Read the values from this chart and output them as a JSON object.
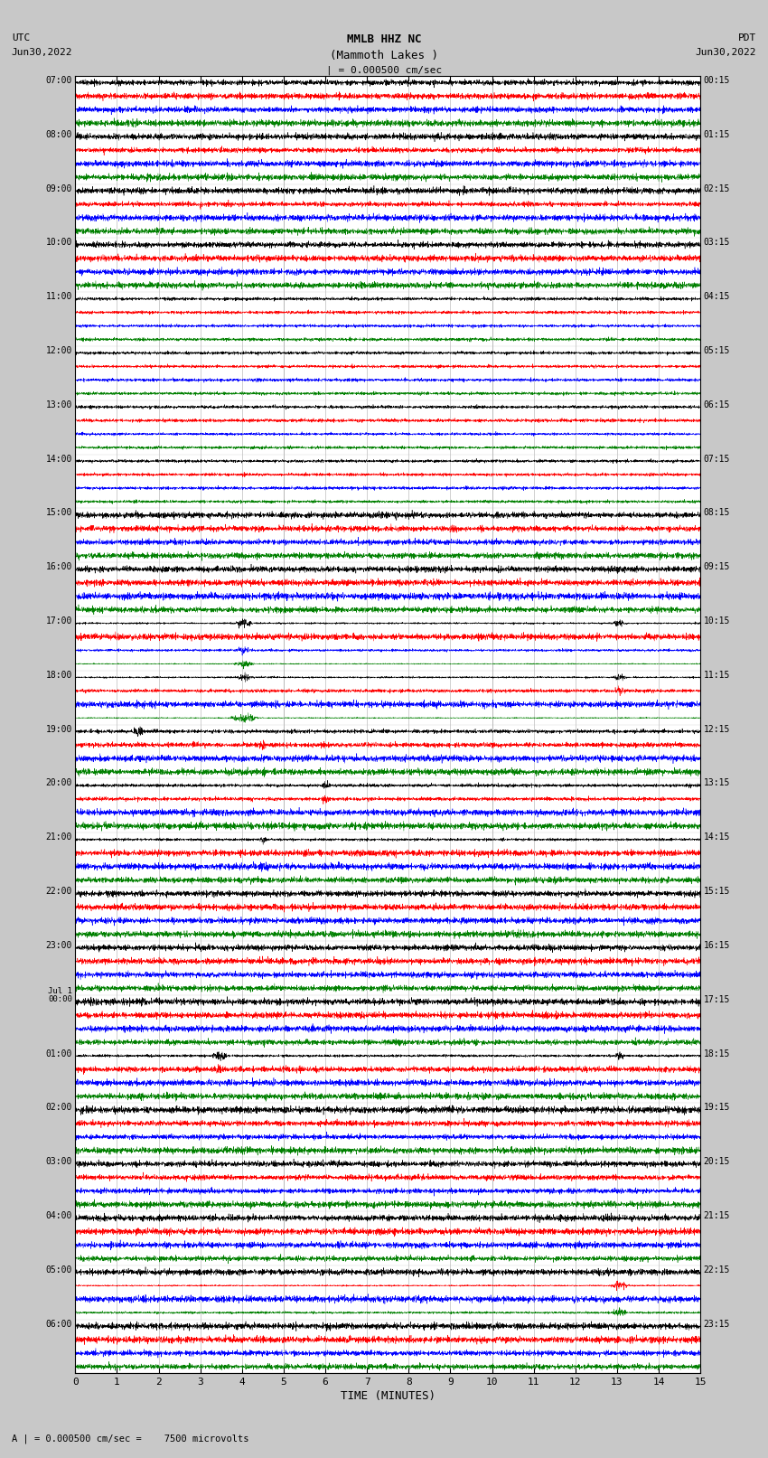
{
  "title_line1": "MMLB HHZ NC",
  "title_line2": "(Mammoth Lakes )",
  "title_line3": "| = 0.000500 cm/sec",
  "left_header_1": "UTC",
  "left_header_2": "Jun30,2022",
  "right_header_1": "PDT",
  "right_header_2": "Jun30,2022",
  "xlabel": "TIME (MINUTES)",
  "footer": "A | = 0.000500 cm/sec =    7500 microvolts",
  "xlim": [
    0,
    15
  ],
  "xticks": [
    0,
    1,
    2,
    3,
    4,
    5,
    6,
    7,
    8,
    9,
    10,
    11,
    12,
    13,
    14,
    15
  ],
  "left_times": [
    "07:00",
    "08:00",
    "09:00",
    "10:00",
    "11:00",
    "12:00",
    "13:00",
    "14:00",
    "15:00",
    "16:00",
    "17:00",
    "18:00",
    "19:00",
    "20:00",
    "21:00",
    "22:00",
    "23:00",
    "Jul 1\n00:00",
    "01:00",
    "02:00",
    "03:00",
    "04:00",
    "05:00",
    "06:00"
  ],
  "right_times": [
    "00:15",
    "01:15",
    "02:15",
    "03:15",
    "04:15",
    "05:15",
    "06:15",
    "07:15",
    "08:15",
    "09:15",
    "10:15",
    "11:15",
    "12:15",
    "13:15",
    "14:15",
    "15:15",
    "16:15",
    "17:15",
    "18:15",
    "19:15",
    "20:15",
    "21:15",
    "22:15",
    "23:15"
  ],
  "n_rows": 24,
  "traces_per_row": 4,
  "colors": [
    "black",
    "red",
    "blue",
    "green"
  ],
  "bg_color": "#c8c8c8",
  "plot_bg": "#ffffff",
  "noise_seed": 42
}
